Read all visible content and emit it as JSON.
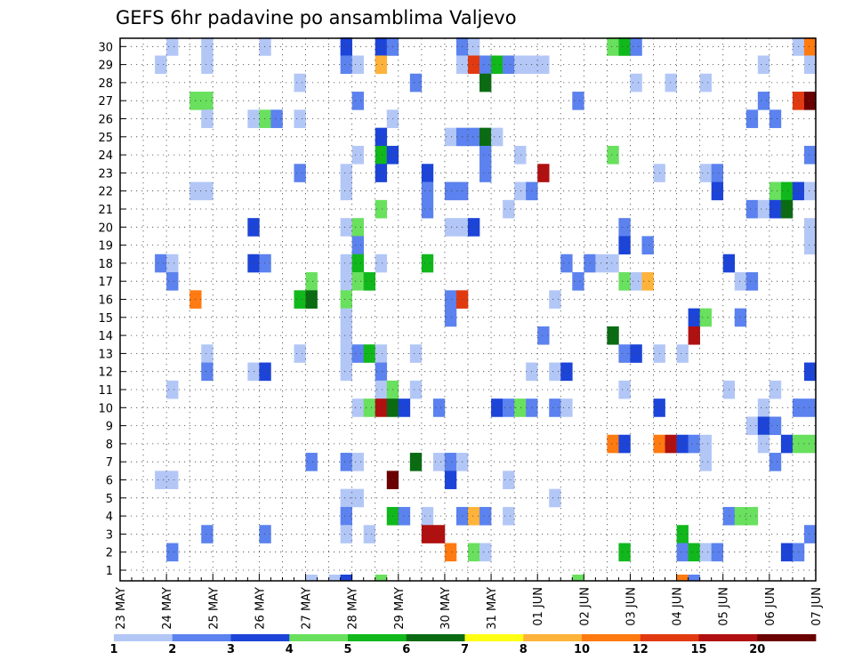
{
  "chart_data": {
    "type": "heatmap",
    "title": "GEFS 6hr padavine po ansamblima Valjevo",
    "xlabel": "",
    "ylabel": "",
    "x_ticks": [
      "23 MAY",
      "24 MAY",
      "25 MAY",
      "26 MAY",
      "27 MAY",
      "28 MAY",
      "29 MAY",
      "30 MAY",
      "31 MAY",
      "01 JUN",
      "02 JUN",
      "03 JUN",
      "04 JUN",
      "05 JUN",
      "06 JUN",
      "07 JUN"
    ],
    "x_steps_per_day": 4,
    "x_steps_total": 60,
    "y_ticks": [
      "1",
      "2",
      "3",
      "4",
      "5",
      "6",
      "7",
      "8",
      "9",
      "10",
      "11",
      "12",
      "13",
      "14",
      "15",
      "16",
      "17",
      "18",
      "19",
      "20",
      "21",
      "22",
      "23",
      "24",
      "25",
      "26",
      "27",
      "28",
      "29",
      "30"
    ],
    "y_range": [
      1,
      30
    ],
    "grid": true,
    "legend_position": "bottom",
    "colorbar": {
      "labels": [
        "1",
        "2",
        "3",
        "4",
        "5",
        "6",
        "7",
        "8",
        "10",
        "12",
        "15",
        "20"
      ],
      "colors": [
        "#b3c7f7",
        "#5b82ee",
        "#1c44d8",
        "#69e05e",
        "#10b81c",
        "#0a6b13",
        "#ffff14",
        "#ffb33a",
        "#ff7a10",
        "#e23a10",
        "#b01010",
        "#6a0000"
      ]
    },
    "cells": [
      [
        4,
        30,
        1
      ],
      [
        7,
        30,
        1
      ],
      [
        12,
        30,
        1
      ],
      [
        19,
        30,
        3
      ],
      [
        22,
        30,
        3
      ],
      [
        23,
        30,
        2
      ],
      [
        29,
        30,
        2
      ],
      [
        30,
        30,
        1
      ],
      [
        42,
        30,
        4
      ],
      [
        43,
        30,
        5
      ],
      [
        44,
        30,
        2
      ],
      [
        58,
        30,
        1
      ],
      [
        59,
        30,
        10
      ],
      [
        3,
        29,
        1
      ],
      [
        7,
        29,
        1
      ],
      [
        19,
        29,
        2
      ],
      [
        20,
        29,
        1
      ],
      [
        22,
        29,
        8
      ],
      [
        29,
        29,
        1
      ],
      [
        30,
        29,
        12
      ],
      [
        31,
        29,
        2
      ],
      [
        32,
        29,
        5
      ],
      [
        33,
        29,
        2
      ],
      [
        34,
        29,
        1
      ],
      [
        35,
        29,
        1
      ],
      [
        36,
        29,
        1
      ],
      [
        55,
        29,
        1
      ],
      [
        59,
        29,
        1
      ],
      [
        15,
        28,
        1
      ],
      [
        25,
        28,
        2
      ],
      [
        31,
        28,
        6
      ],
      [
        44,
        28,
        1
      ],
      [
        47,
        28,
        1
      ],
      [
        50,
        28,
        1
      ],
      [
        6,
        27,
        4
      ],
      [
        7,
        27,
        4
      ],
      [
        20,
        27,
        2
      ],
      [
        39,
        27,
        2
      ],
      [
        55,
        27,
        2
      ],
      [
        58,
        27,
        12
      ],
      [
        59,
        27,
        20
      ],
      [
        7,
        26,
        1
      ],
      [
        11,
        26,
        1
      ],
      [
        12,
        26,
        4
      ],
      [
        13,
        26,
        2
      ],
      [
        15,
        26,
        1
      ],
      [
        23,
        26,
        1
      ],
      [
        54,
        26,
        2
      ],
      [
        56,
        26,
        2
      ],
      [
        22,
        25,
        3
      ],
      [
        28,
        25,
        1
      ],
      [
        29,
        25,
        2
      ],
      [
        30,
        25,
        2
      ],
      [
        31,
        25,
        6
      ],
      [
        32,
        25,
        1
      ],
      [
        20,
        24,
        1
      ],
      [
        22,
        24,
        5
      ],
      [
        23,
        24,
        3
      ],
      [
        31,
        24,
        2
      ],
      [
        34,
        24,
        1
      ],
      [
        42,
        24,
        4
      ],
      [
        59,
        24,
        2
      ],
      [
        15,
        23,
        2
      ],
      [
        19,
        23,
        1
      ],
      [
        22,
        23,
        3
      ],
      [
        26,
        23,
        3
      ],
      [
        31,
        23,
        2
      ],
      [
        36,
        23,
        15
      ],
      [
        46,
        23,
        1
      ],
      [
        50,
        23,
        1
      ],
      [
        51,
        23,
        2
      ],
      [
        6,
        22,
        1
      ],
      [
        7,
        22,
        1
      ],
      [
        19,
        22,
        1
      ],
      [
        26,
        22,
        2
      ],
      [
        28,
        22,
        2
      ],
      [
        29,
        22,
        2
      ],
      [
        34,
        22,
        1
      ],
      [
        35,
        22,
        2
      ],
      [
        51,
        22,
        3
      ],
      [
        56,
        22,
        4
      ],
      [
        57,
        22,
        5
      ],
      [
        58,
        22,
        3
      ],
      [
        59,
        22,
        1
      ],
      [
        22,
        21,
        4
      ],
      [
        26,
        21,
        2
      ],
      [
        33,
        21,
        1
      ],
      [
        54,
        21,
        2
      ],
      [
        55,
        21,
        1
      ],
      [
        56,
        21,
        3
      ],
      [
        57,
        21,
        6
      ],
      [
        11,
        20,
        3
      ],
      [
        19,
        20,
        1
      ],
      [
        20,
        20,
        4
      ],
      [
        28,
        20,
        1
      ],
      [
        29,
        20,
        1
      ],
      [
        30,
        20,
        3
      ],
      [
        43,
        20,
        2
      ],
      [
        59,
        20,
        1
      ],
      [
        20,
        19,
        2
      ],
      [
        43,
        19,
        3
      ],
      [
        45,
        19,
        2
      ],
      [
        59,
        19,
        1
      ],
      [
        3,
        18,
        2
      ],
      [
        4,
        18,
        1
      ],
      [
        11,
        18,
        3
      ],
      [
        12,
        18,
        2
      ],
      [
        19,
        18,
        1
      ],
      [
        20,
        18,
        5
      ],
      [
        22,
        18,
        1
      ],
      [
        26,
        18,
        5
      ],
      [
        38,
        18,
        2
      ],
      [
        40,
        18,
        2
      ],
      [
        41,
        18,
        1
      ],
      [
        42,
        18,
        1
      ],
      [
        52,
        18,
        3
      ],
      [
        4,
        17,
        2
      ],
      [
        16,
        17,
        4
      ],
      [
        19,
        17,
        1
      ],
      [
        20,
        17,
        4
      ],
      [
        21,
        17,
        5
      ],
      [
        39,
        17,
        2
      ],
      [
        43,
        17,
        4
      ],
      [
        44,
        17,
        1
      ],
      [
        45,
        17,
        8
      ],
      [
        53,
        17,
        1
      ],
      [
        54,
        17,
        2
      ],
      [
        6,
        16,
        10
      ],
      [
        15,
        16,
        5
      ],
      [
        16,
        16,
        6
      ],
      [
        19,
        16,
        4
      ],
      [
        28,
        16,
        2
      ],
      [
        29,
        16,
        12
      ],
      [
        37,
        16,
        1
      ],
      [
        19,
        15,
        1
      ],
      [
        28,
        15,
        2
      ],
      [
        49,
        15,
        3
      ],
      [
        50,
        15,
        4
      ],
      [
        53,
        15,
        2
      ],
      [
        19,
        14,
        1
      ],
      [
        36,
        14,
        2
      ],
      [
        42,
        14,
        6
      ],
      [
        49,
        14,
        15
      ],
      [
        7,
        13,
        1
      ],
      [
        15,
        13,
        1
      ],
      [
        19,
        13,
        1
      ],
      [
        20,
        13,
        2
      ],
      [
        21,
        13,
        5
      ],
      [
        22,
        13,
        1
      ],
      [
        25,
        13,
        1
      ],
      [
        43,
        13,
        2
      ],
      [
        44,
        13,
        3
      ],
      [
        46,
        13,
        1
      ],
      [
        48,
        13,
        1
      ],
      [
        7,
        12,
        2
      ],
      [
        11,
        12,
        1
      ],
      [
        12,
        12,
        3
      ],
      [
        19,
        12,
        1
      ],
      [
        22,
        12,
        2
      ],
      [
        35,
        12,
        1
      ],
      [
        37,
        12,
        1
      ],
      [
        38,
        12,
        3
      ],
      [
        59,
        12,
        3
      ],
      [
        4,
        11,
        1
      ],
      [
        22,
        11,
        1
      ],
      [
        23,
        11,
        4
      ],
      [
        25,
        11,
        1
      ],
      [
        43,
        11,
        1
      ],
      [
        52,
        11,
        1
      ],
      [
        56,
        11,
        1
      ],
      [
        20,
        10,
        1
      ],
      [
        21,
        10,
        4
      ],
      [
        22,
        10,
        15
      ],
      [
        23,
        10,
        6
      ],
      [
        24,
        10,
        3
      ],
      [
        27,
        10,
        2
      ],
      [
        32,
        10,
        3
      ],
      [
        33,
        10,
        2
      ],
      [
        34,
        10,
        4
      ],
      [
        35,
        10,
        2
      ],
      [
        37,
        10,
        2
      ],
      [
        38,
        10,
        1
      ],
      [
        46,
        10,
        3
      ],
      [
        55,
        10,
        1
      ],
      [
        58,
        10,
        2
      ],
      [
        59,
        10,
        2
      ],
      [
        54,
        9,
        1
      ],
      [
        55,
        9,
        3
      ],
      [
        56,
        9,
        2
      ],
      [
        42,
        8,
        10
      ],
      [
        43,
        8,
        3
      ],
      [
        46,
        8,
        10
      ],
      [
        47,
        8,
        15
      ],
      [
        48,
        8,
        3
      ],
      [
        49,
        8,
        2
      ],
      [
        50,
        8,
        1
      ],
      [
        55,
        8,
        1
      ],
      [
        57,
        8,
        3
      ],
      [
        58,
        8,
        4
      ],
      [
        59,
        8,
        4
      ],
      [
        16,
        7,
        2
      ],
      [
        19,
        7,
        2
      ],
      [
        20,
        7,
        1
      ],
      [
        25,
        7,
        6
      ],
      [
        27,
        7,
        1
      ],
      [
        28,
        7,
        2
      ],
      [
        29,
        7,
        1
      ],
      [
        50,
        7,
        1
      ],
      [
        56,
        7,
        2
      ],
      [
        3,
        6,
        1
      ],
      [
        4,
        6,
        1
      ],
      [
        23,
        6,
        20
      ],
      [
        28,
        6,
        3
      ],
      [
        33,
        6,
        1
      ],
      [
        19,
        5,
        1
      ],
      [
        20,
        5,
        1
      ],
      [
        37,
        5,
        1
      ],
      [
        19,
        4,
        2
      ],
      [
        23,
        4,
        5
      ],
      [
        24,
        4,
        2
      ],
      [
        26,
        4,
        1
      ],
      [
        29,
        4,
        2
      ],
      [
        30,
        4,
        8
      ],
      [
        31,
        4,
        2
      ],
      [
        33,
        4,
        1
      ],
      [
        52,
        4,
        2
      ],
      [
        53,
        4,
        4
      ],
      [
        54,
        4,
        4
      ],
      [
        7,
        3,
        2
      ],
      [
        12,
        3,
        2
      ],
      [
        19,
        3,
        1
      ],
      [
        21,
        3,
        1
      ],
      [
        26,
        3,
        15
      ],
      [
        27,
        3,
        15
      ],
      [
        48,
        3,
        5
      ],
      [
        59,
        3,
        2
      ],
      [
        4,
        2,
        2
      ],
      [
        28,
        2,
        10
      ],
      [
        30,
        2,
        4
      ],
      [
        31,
        2,
        1
      ],
      [
        43,
        2,
        5
      ],
      [
        48,
        2,
        2
      ],
      [
        49,
        2,
        5
      ],
      [
        50,
        2,
        1
      ],
      [
        51,
        2,
        2
      ],
      [
        57,
        2,
        3
      ],
      [
        58,
        2,
        2
      ]
    ],
    "bottom_partial": [
      [
        16,
        1
      ],
      [
        18,
        1
      ],
      [
        19,
        3
      ],
      [
        22,
        4
      ],
      [
        39,
        4
      ],
      [
        48,
        10
      ],
      [
        49,
        2
      ]
    ]
  }
}
